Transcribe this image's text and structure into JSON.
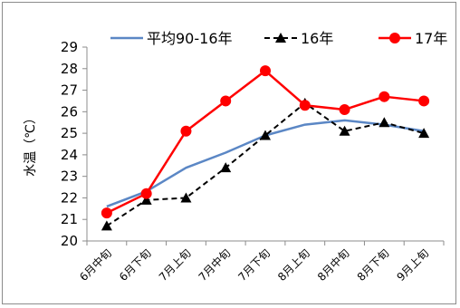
{
  "chart_data": {
    "type": "line",
    "title": "",
    "xlabel": "",
    "ylabel": "水温（℃）",
    "categories": [
      "6月中旬",
      "6月下旬",
      "7月上旬",
      "7月中旬",
      "7月下旬",
      "8月上旬",
      "8月中旬",
      "8月下旬",
      "9月上旬"
    ],
    "ylim": [
      20,
      29
    ],
    "yticks": [
      20,
      21,
      22,
      23,
      24,
      25,
      26,
      27,
      28,
      29
    ],
    "grid": false,
    "legend_position": "top",
    "series": [
      {
        "name": "平均90-16年",
        "color": "#5b87c5",
        "style": "solid",
        "marker": "none",
        "values": [
          21.6,
          22.3,
          23.4,
          24.1,
          24.9,
          25.4,
          25.6,
          25.4,
          25.1
        ]
      },
      {
        "name": "16年",
        "color": "#000000",
        "style": "dashed",
        "marker": "triangle",
        "values": [
          20.7,
          21.9,
          22.0,
          23.4,
          24.9,
          26.4,
          25.1,
          25.5,
          25.0
        ]
      },
      {
        "name": "17年",
        "color": "#ff0000",
        "style": "solid",
        "marker": "circle",
        "values": [
          21.3,
          22.2,
          25.1,
          26.5,
          27.9,
          26.3,
          26.1,
          26.7,
          26.5
        ]
      }
    ]
  }
}
